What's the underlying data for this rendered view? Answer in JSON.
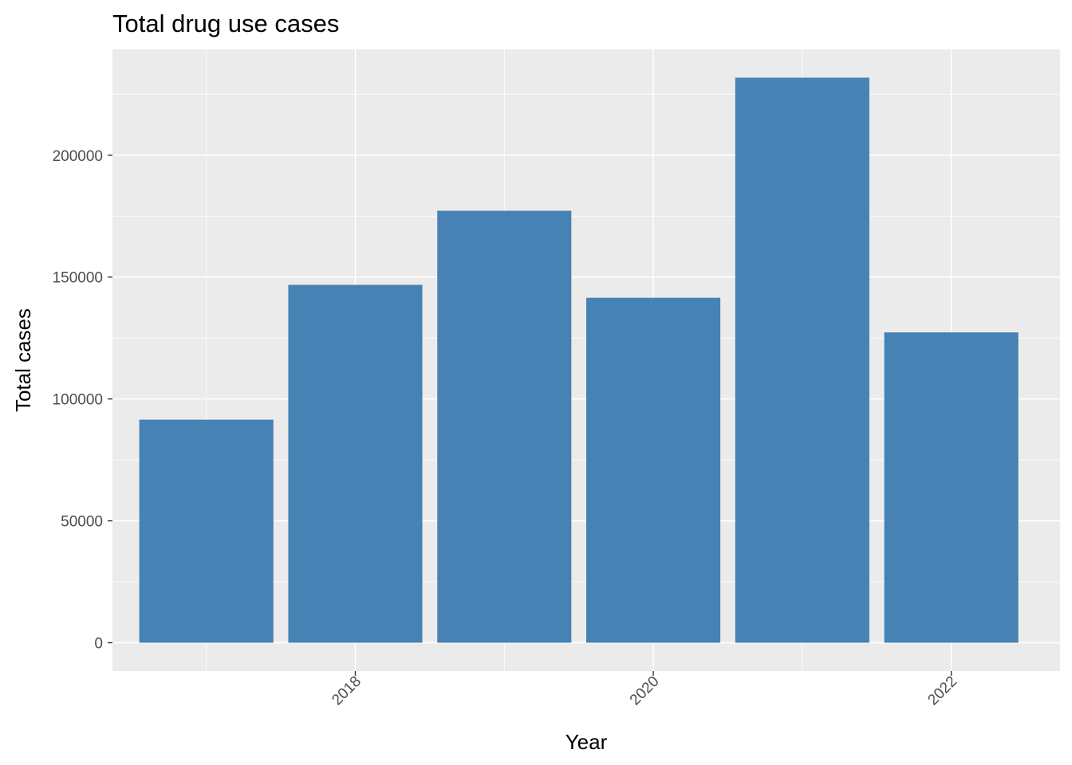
{
  "chart_data": {
    "type": "bar",
    "title": "Total drug use cases",
    "xlabel": "Year",
    "ylabel": "Total cases",
    "x": [
      2017,
      2018,
      2019,
      2020,
      2021,
      2022
    ],
    "values": [
      91500,
      146800,
      177200,
      141500,
      231800,
      127300
    ],
    "xticks": [
      2018,
      2020,
      2022
    ],
    "xtick_labels": [
      "2018",
      "2020",
      "2022"
    ],
    "yticks": [
      0,
      50000,
      100000,
      150000,
      200000
    ],
    "ytick_labels": [
      "0",
      "50000",
      "100000",
      "150000",
      "200000"
    ],
    "xlim": [
      2016.37,
      2022.73
    ],
    "ylim": [
      -11600,
      243400
    ],
    "bar_color": "#4682B4",
    "panel_background": "#EBEBEB",
    "grid": true,
    "legend": "none"
  }
}
